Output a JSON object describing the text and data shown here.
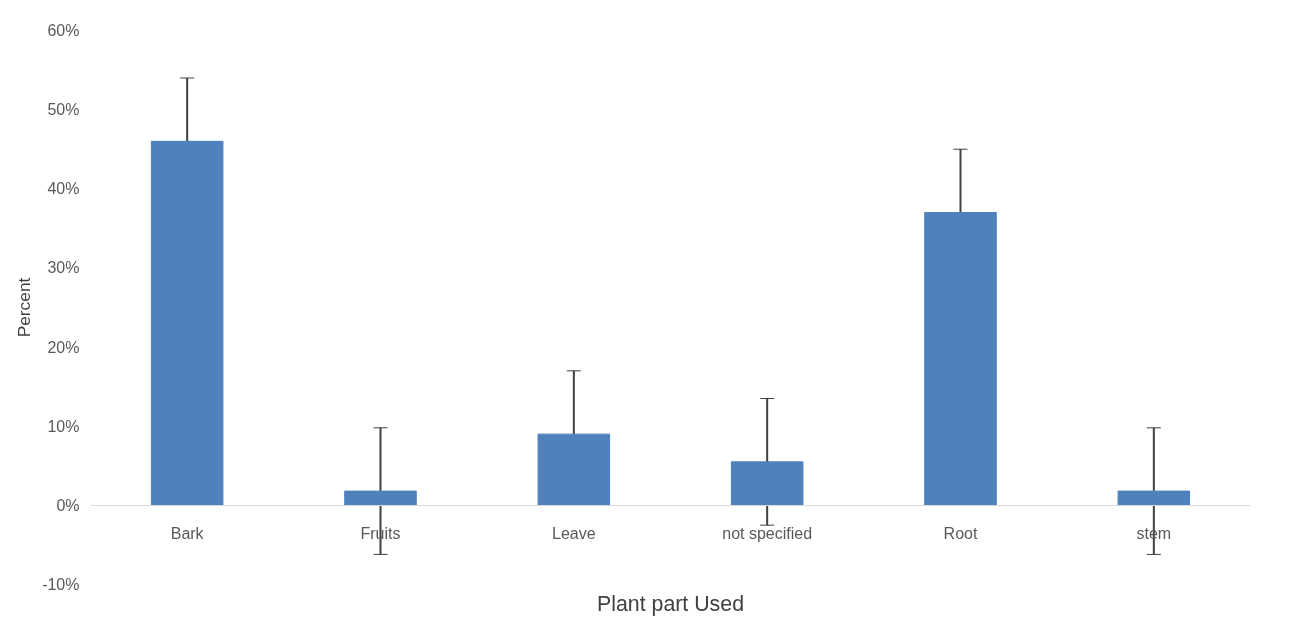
{
  "chart_data": {
    "type": "bar",
    "xlabel": "Plant part Used",
    "ylabel": "Percent",
    "categories": [
      "Bark",
      "Fruits",
      "Leave",
      "not specified",
      "Root",
      "stem"
    ],
    "values": [
      46,
      1.8,
      9,
      5.5,
      37,
      1.8
    ],
    "errors": [
      8,
      8,
      8,
      8,
      8,
      8
    ],
    "color": "#4f81bd",
    "ylim": [
      -10,
      60
    ],
    "yticks": [
      {
        "value": -10,
        "label": "-10%"
      },
      {
        "value": 0,
        "label": "0%"
      },
      {
        "value": 10,
        "label": "10%"
      },
      {
        "value": 20,
        "label": "20%"
      },
      {
        "value": 30,
        "label": "30%"
      },
      {
        "value": 40,
        "label": "40%"
      },
      {
        "value": 50,
        "label": "50%"
      },
      {
        "value": 60,
        "label": "60%"
      }
    ],
    "grid": false
  }
}
